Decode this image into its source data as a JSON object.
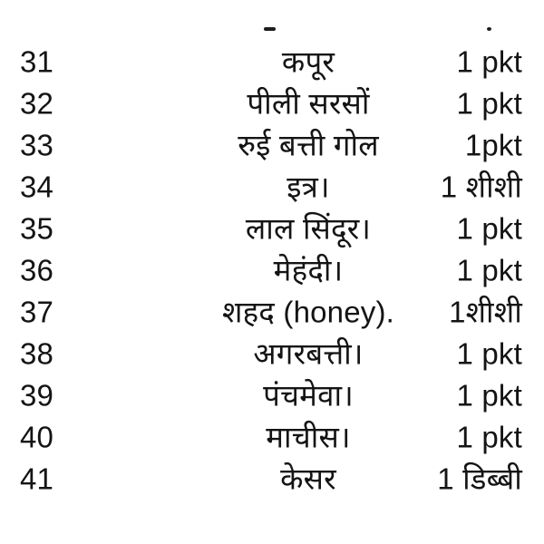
{
  "page": {
    "background_color": "#ffffff",
    "text_color": "#141414",
    "truncated_previous_row_visible": true
  },
  "list": {
    "rows": [
      {
        "no": "31",
        "item": "कपूर",
        "qty": "1 pkt"
      },
      {
        "no": "32",
        "item": "पीली सरसों",
        "qty": "1 pkt"
      },
      {
        "no": "33",
        "item": "रुई बत्ती गोल",
        "qty": "1pkt"
      },
      {
        "no": "34",
        "item": "इत्र।",
        "qty": "1 शीशी"
      },
      {
        "no": "35",
        "item": "लाल सिंदूर।",
        "qty": "1 pkt"
      },
      {
        "no": "36",
        "item": "मेहंदी।",
        "qty": "1 pkt"
      },
      {
        "no": "37",
        "item": "शहद (honey).",
        "qty": "1शीशी"
      },
      {
        "no": "38",
        "item": "अगरबत्ती।",
        "qty": "1 pkt"
      },
      {
        "no": "39",
        "item": "पंचमेवा।",
        "qty": "1 pkt"
      },
      {
        "no": "40",
        "item": "माचीस।",
        "qty": "1 pkt"
      },
      {
        "no": "41",
        "item": "केसर",
        "qty": "1 डिब्बी"
      }
    ]
  }
}
